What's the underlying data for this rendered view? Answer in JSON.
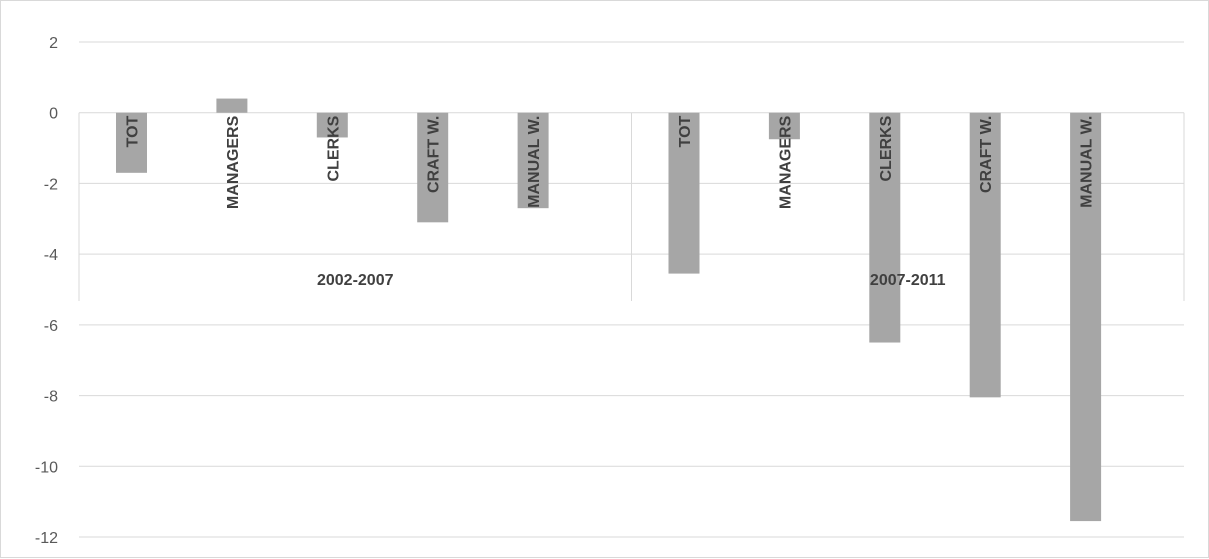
{
  "chart_data": {
    "type": "bar",
    "title": "",
    "xlabel": "",
    "ylabel": "",
    "ylim": [
      -12,
      2
    ],
    "yticks": [
      2,
      0,
      -2,
      -4,
      -6,
      -8,
      -10,
      -12
    ],
    "grid": true,
    "bar_color": "#a6a6a6",
    "groups": [
      {
        "label": "2002-2007",
        "categories": [
          "TOT",
          "MANAGERS",
          "CLERKS",
          "CRAFT W.",
          "MANUAL W."
        ],
        "values": [
          -1.7,
          0.4,
          -0.7,
          -3.1,
          -2.7
        ]
      },
      {
        "label": "2007-2011",
        "categories": [
          "TOT",
          "MANAGERS",
          "CLERKS",
          "CRAFT W.",
          "MANUAL W."
        ],
        "values": [
          -4.55,
          -0.75,
          -6.5,
          -8.05,
          -11.55
        ]
      }
    ]
  }
}
